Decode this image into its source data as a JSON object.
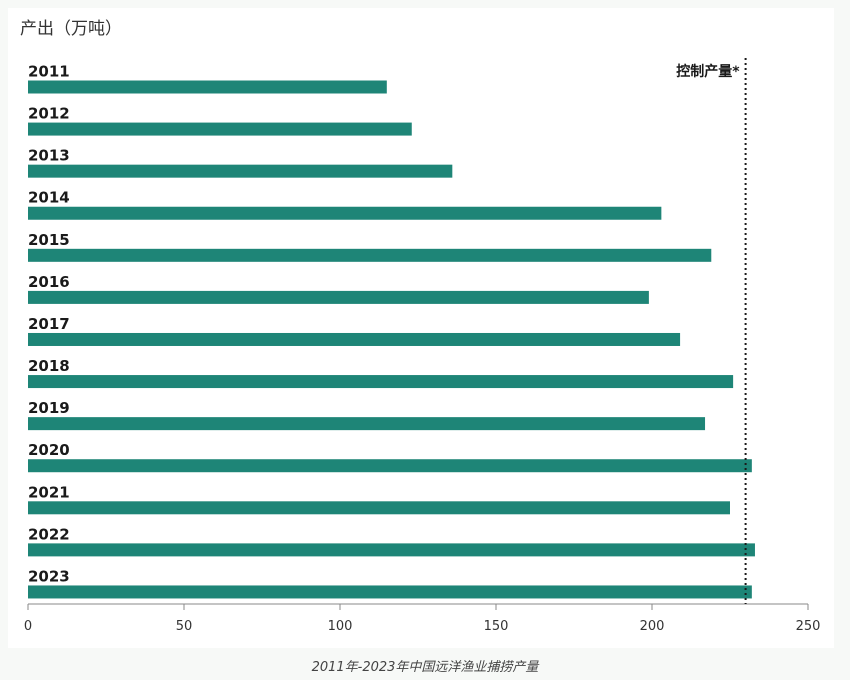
{
  "chart_data": {
    "type": "bar",
    "orientation": "horizontal",
    "ylabel": "产出（万吨）",
    "categories": [
      "2011",
      "2012",
      "2013",
      "2014",
      "2015",
      "2016",
      "2017",
      "2018",
      "2019",
      "2020",
      "2021",
      "2022",
      "2023"
    ],
    "values": [
      115,
      123,
      136,
      203,
      219,
      199,
      209,
      226,
      217,
      232,
      225,
      233,
      232
    ],
    "xlim": [
      0,
      250
    ],
    "xticks": [
      0,
      50,
      100,
      150,
      200,
      250
    ],
    "reference_line": {
      "value": 230,
      "label": "控制产量*",
      "style": "dotted"
    },
    "bar_color": "#1e8577",
    "grid": false,
    "caption": "2011年-2023年中国远洋渔业捕捞产量"
  }
}
